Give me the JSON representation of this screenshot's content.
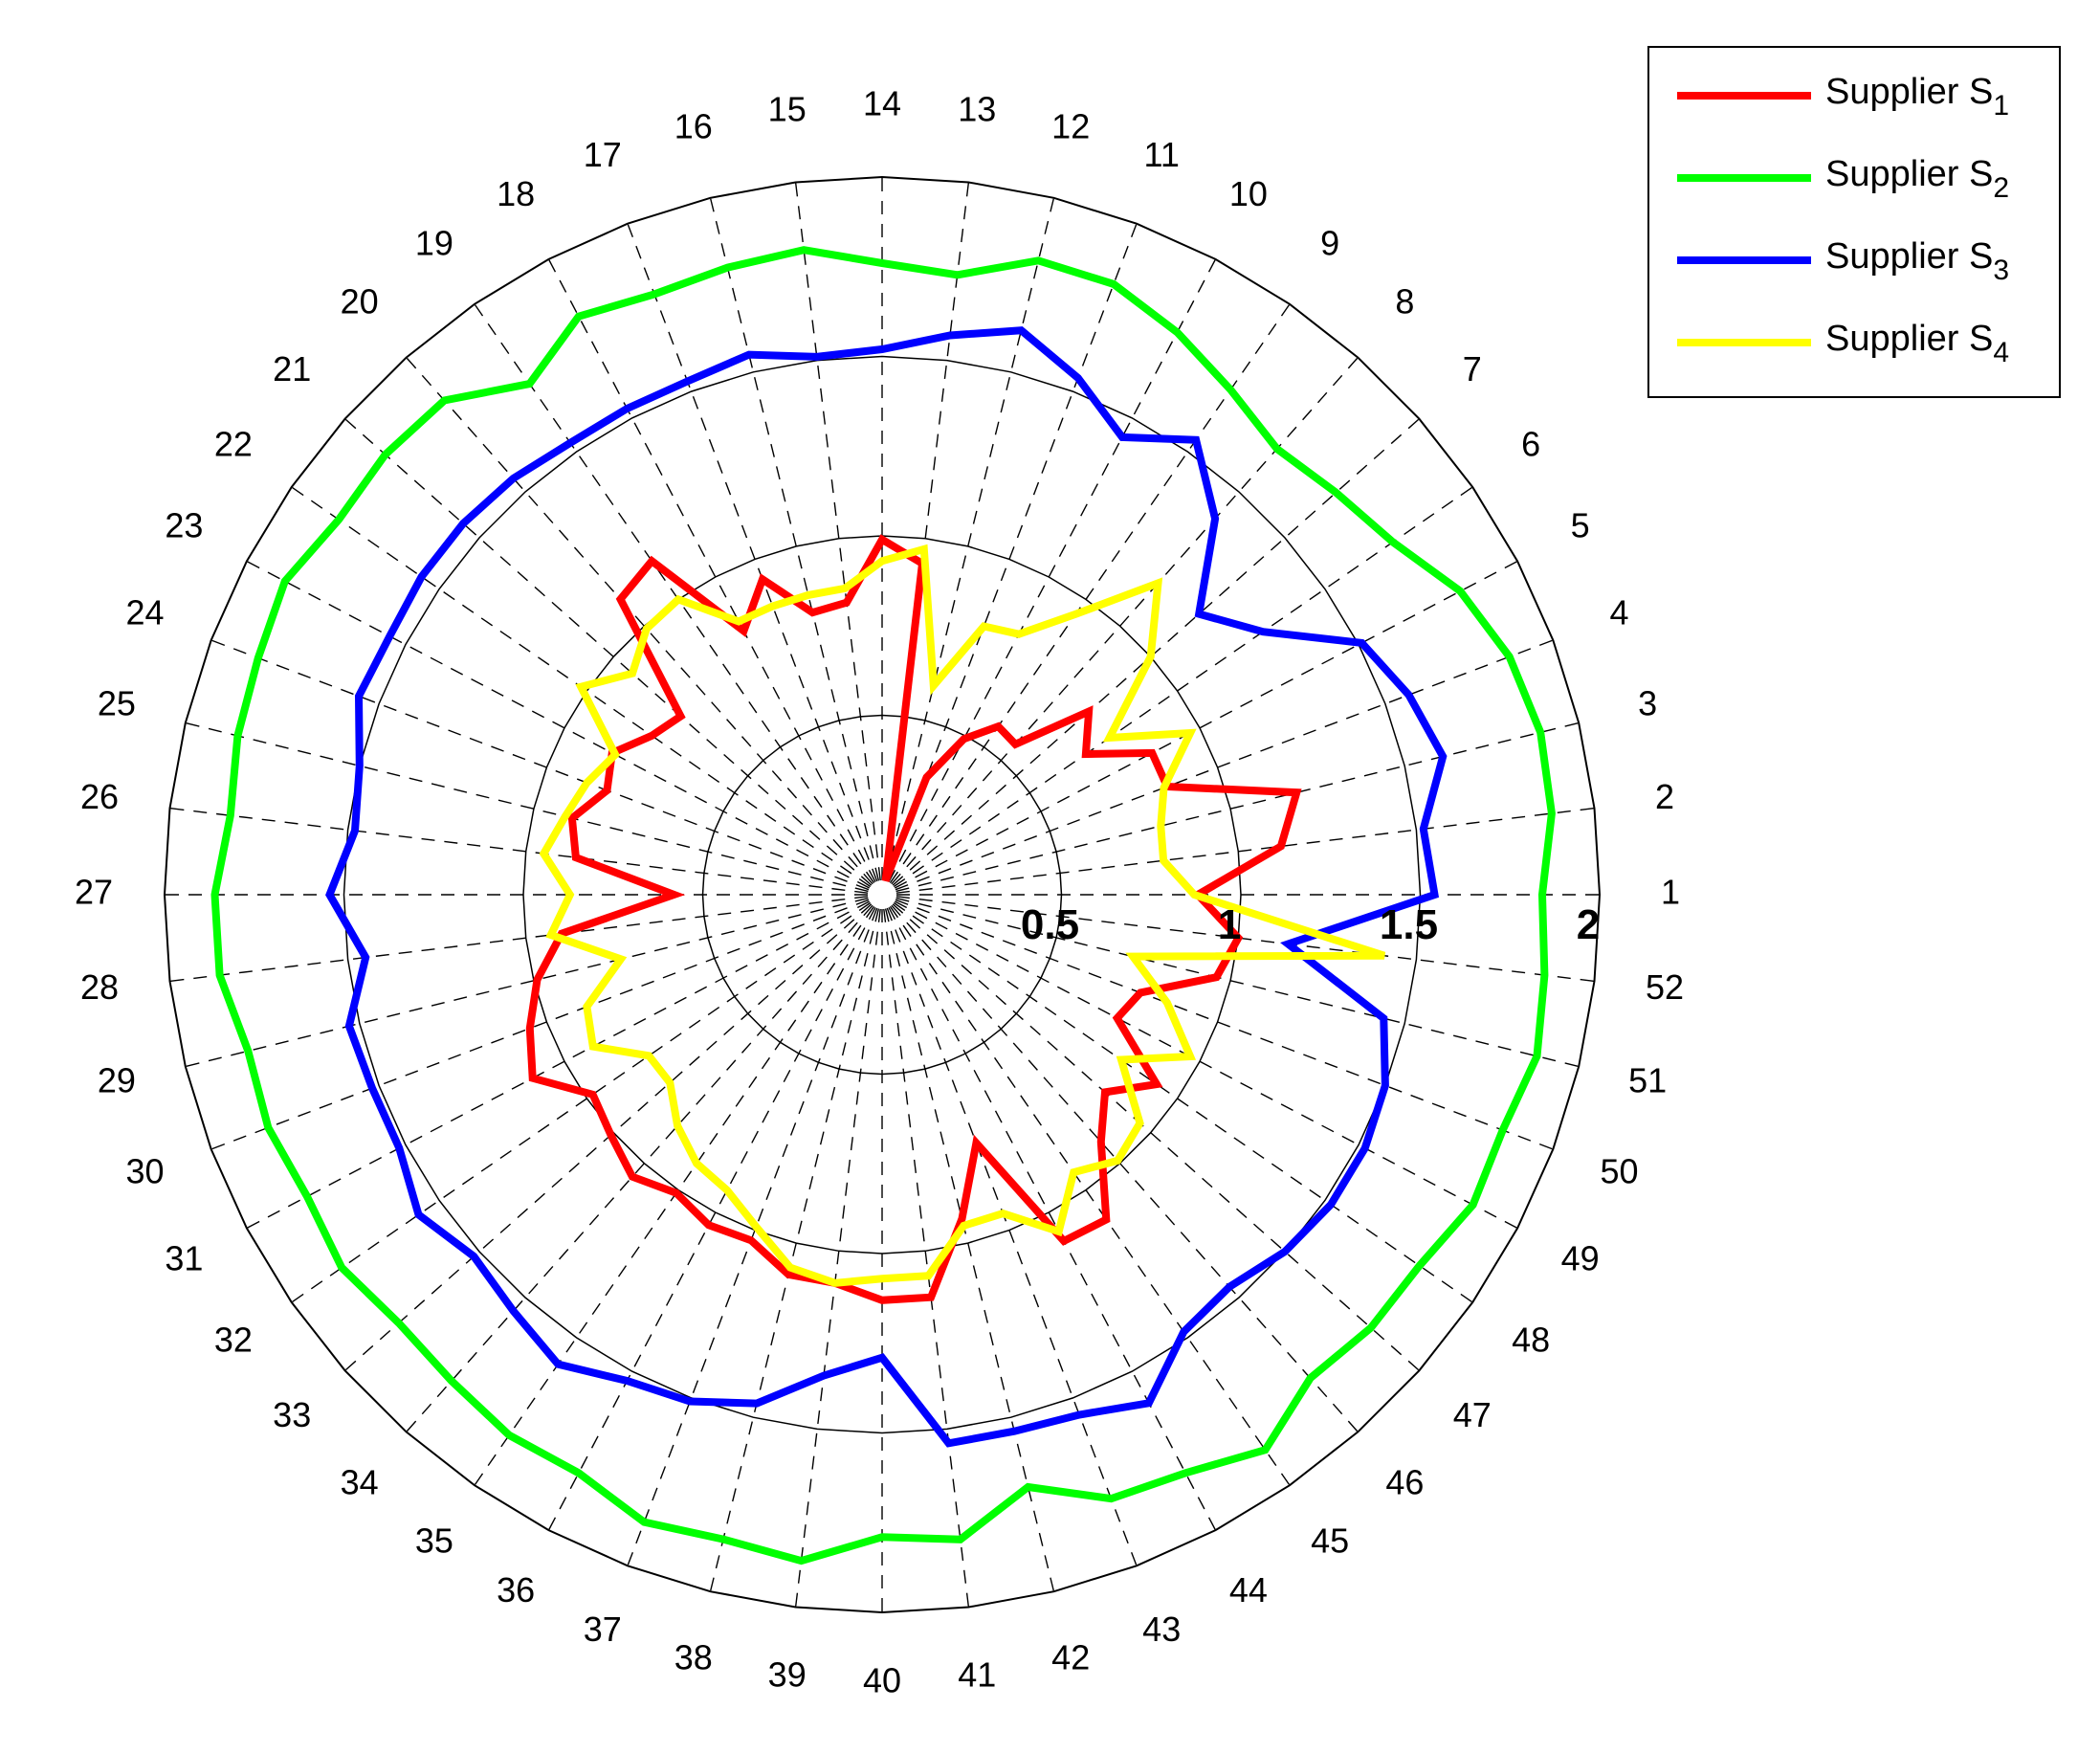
{
  "chart_data": {
    "type": "radar",
    "categories": [
      "1",
      "2",
      "3",
      "4",
      "5",
      "6",
      "7",
      "8",
      "9",
      "10",
      "11",
      "12",
      "13",
      "14",
      "15",
      "16",
      "17",
      "18",
      "19",
      "20",
      "21",
      "22",
      "23",
      "24",
      "25",
      "26",
      "27",
      "28",
      "29",
      "30",
      "31",
      "32",
      "33",
      "34",
      "35",
      "36",
      "37",
      "38",
      "39",
      "40",
      "41",
      "42",
      "43",
      "44",
      "45",
      "46",
      "47",
      "48",
      "49",
      "50",
      "51",
      "52"
    ],
    "radial_ticks": [
      "0.5",
      "1",
      "1.5",
      "2"
    ],
    "rlim": [
      0,
      2
    ],
    "grid": true,
    "legend_position": "top-right",
    "series": [
      {
        "name": "Supplier S",
        "subscript": "1",
        "color": "#ff0000",
        "values": [
          0.88,
          1.12,
          1.19,
          0.85,
          0.85,
          0.69,
          0.77,
          0.56,
          0.57,
          0.49,
          0.35,
          0.04,
          0.93,
          0.99,
          0.82,
          0.81,
          0.94,
          0.83,
          1.13,
          1.1,
          0.75,
          0.78,
          0.85,
          0.82,
          0.89,
          0.86,
          0.58,
          0.9,
          0.99,
          1.05,
          1.1,
          0.98,
          1.01,
          1.05,
          1.01,
          1.04,
          1.03,
          1.09,
          1.09,
          1.13,
          1.13,
          0.93,
          0.74,
          1.09,
          1.1,
          0.92,
          0.83,
          0.93,
          0.74,
          0.77,
          0.96,
          1.0
        ]
      },
      {
        "name": "Supplier S",
        "subscript": "2",
        "color": "#00ff00",
        "values": [
          1.84,
          1.88,
          1.89,
          1.87,
          1.82,
          1.73,
          1.69,
          1.66,
          1.71,
          1.77,
          1.82,
          1.82,
          1.74,
          1.76,
          1.81,
          1.8,
          1.79,
          1.82,
          1.73,
          1.84,
          1.85,
          1.84,
          1.88,
          1.86,
          1.85,
          1.83,
          1.86,
          1.86,
          1.82,
          1.83,
          1.81,
          1.83,
          1.8,
          1.81,
          1.83,
          1.82,
          1.87,
          1.85,
          1.87,
          1.79,
          1.81,
          1.7,
          1.8,
          1.82,
          1.88,
          1.8,
          1.82,
          1.82,
          1.86,
          1.85,
          1.88,
          1.86
        ]
      },
      {
        "name": "Supplier S",
        "subscript": "3",
        "color": "#0000ff",
        "values": [
          1.54,
          1.52,
          1.61,
          1.57,
          1.51,
          1.29,
          1.18,
          1.4,
          1.54,
          1.44,
          1.54,
          1.62,
          1.57,
          1.52,
          1.51,
          1.55,
          1.53,
          1.53,
          1.53,
          1.55,
          1.56,
          1.56,
          1.55,
          1.56,
          1.5,
          1.48,
          1.54,
          1.45,
          1.53,
          1.52,
          1.52,
          1.57,
          1.52,
          1.55,
          1.59,
          1.53,
          1.51,
          1.46,
          1.35,
          1.29,
          1.54,
          1.54,
          1.55,
          1.6,
          1.48,
          1.46,
          1.5,
          1.52,
          1.52,
          1.5,
          1.44,
          1.14
        ]
      },
      {
        "name": "Supplier S",
        "subscript": "4",
        "color": "#ffff00",
        "values": [
          0.87,
          0.79,
          0.8,
          0.84,
          0.97,
          0.77,
          1.0,
          1.16,
          0.95,
          0.82,
          0.8,
          0.6,
          0.97,
          0.93,
          0.86,
          0.86,
          0.86,
          0.86,
          1.0,
          0.99,
          0.93,
          1.02,
          0.84,
          0.88,
          0.91,
          0.95,
          0.87,
          0.93,
          0.75,
          0.88,
          0.91,
          0.79,
          0.79,
          0.86,
          0.91,
          0.93,
          0.99,
          1.07,
          1.09,
          1.07,
          1.07,
          0.95,
          0.95,
          1.06,
          0.94,
          0.99,
          0.96,
          0.81,
          0.97,
          0.85,
          0.72,
          1.41
        ]
      }
    ]
  }
}
